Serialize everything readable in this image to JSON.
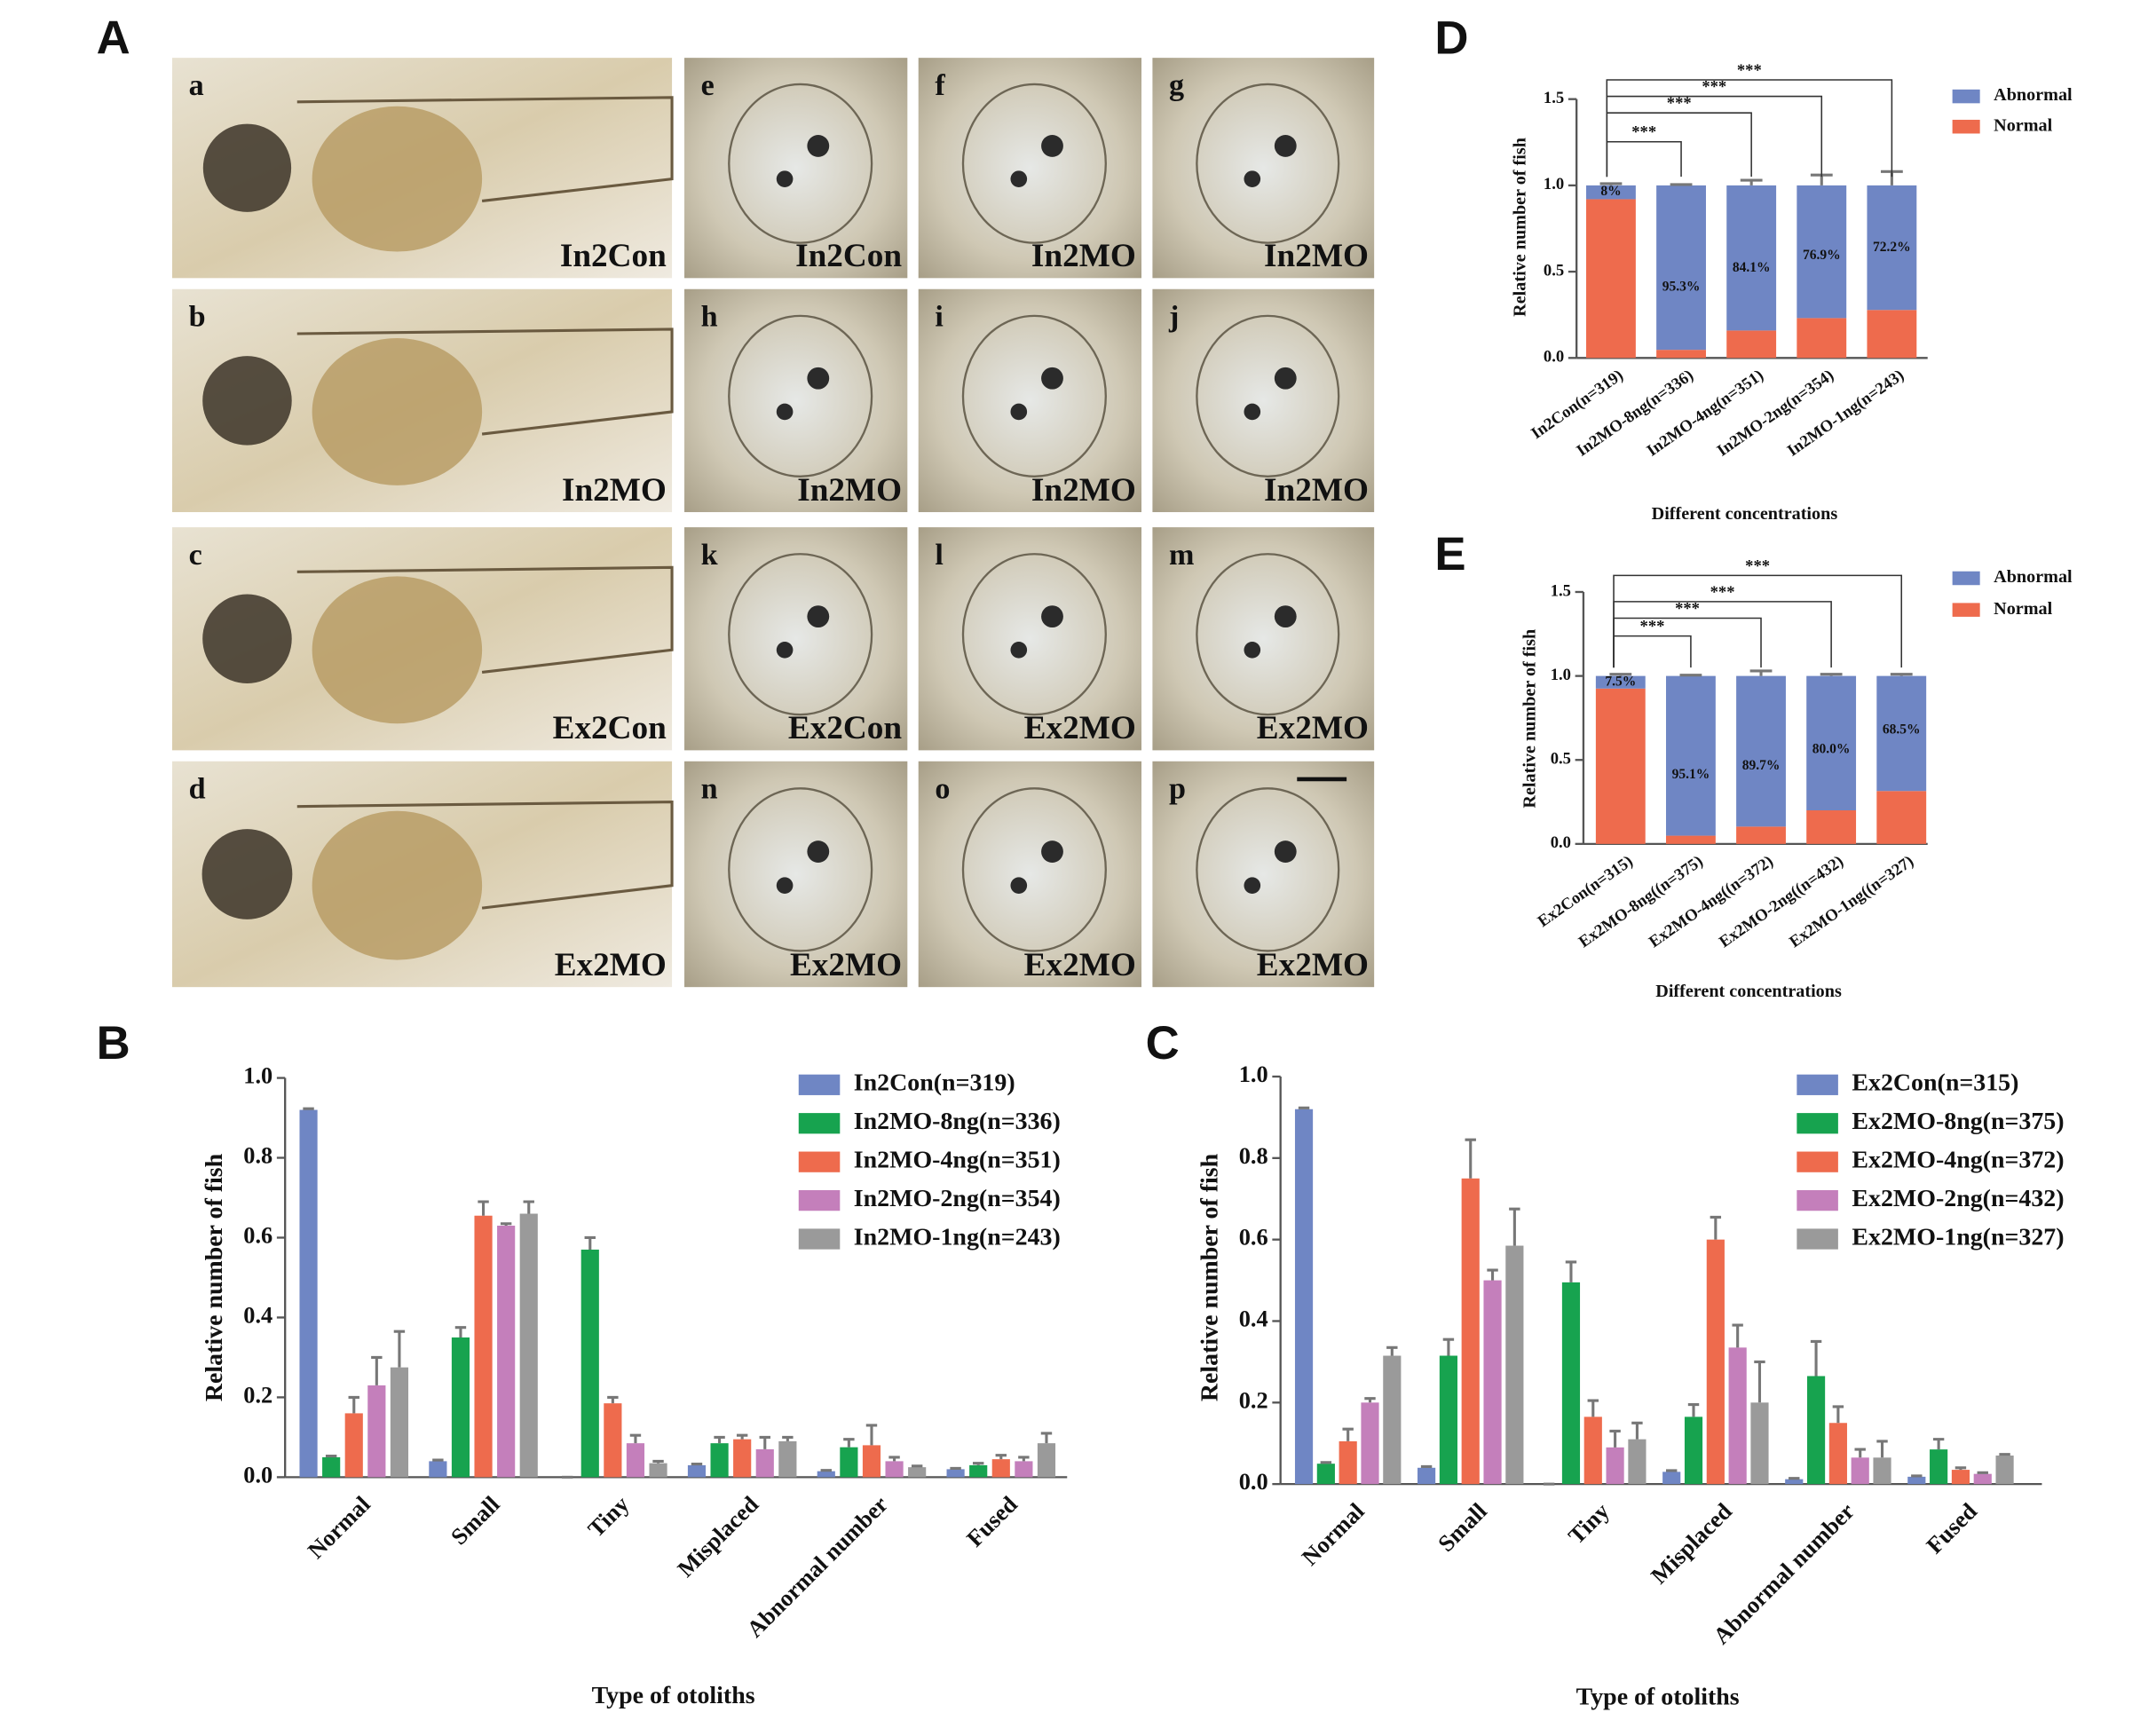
{
  "panel_letters": [
    "A",
    "B",
    "C",
    "D",
    "E"
  ],
  "images": [
    {
      "letter": "a",
      "label": "In2Con"
    },
    {
      "letter": "e",
      "label": "In2Con"
    },
    {
      "letter": "f",
      "label": "In2MO"
    },
    {
      "letter": "g",
      "label": "In2MO"
    },
    {
      "letter": "b",
      "label": "In2MO"
    },
    {
      "letter": "h",
      "label": "In2MO"
    },
    {
      "letter": "i",
      "label": "In2MO"
    },
    {
      "letter": "j",
      "label": "In2MO"
    },
    {
      "letter": "c",
      "label": "Ex2Con"
    },
    {
      "letter": "k",
      "label": "Ex2Con"
    },
    {
      "letter": "l",
      "label": "Ex2MO"
    },
    {
      "letter": "m",
      "label": "Ex2MO"
    },
    {
      "letter": "d",
      "label": "Ex2MO"
    },
    {
      "letter": "n",
      "label": "Ex2MO"
    },
    {
      "letter": "o",
      "label": "Ex2MO"
    },
    {
      "letter": "p",
      "label": "Ex2MO"
    }
  ],
  "chart_data": [
    {
      "type": "bar",
      "y_label": "Relative number of fish",
      "x_label": "Type of otoliths",
      "categories": [
        "Normal",
        "Small",
        "Tiny",
        "Misplaced",
        "Abnormal number",
        "Fused"
      ],
      "ylim": [
        0,
        1.0
      ],
      "yticks": [
        {
          "value": 0,
          "label": "0.0"
        },
        {
          "value": 0.2,
          "label": "0.2"
        },
        {
          "value": 0.4,
          "label": "0.4"
        },
        {
          "value": 0.6,
          "label": "0.6"
        },
        {
          "value": 0.8,
          "label": "0.8"
        },
        {
          "value": 1.0,
          "label": "1.0"
        }
      ],
      "series": [
        {
          "name": "In2Con(n=319)",
          "color": "#6f86c4",
          "values": [
            0.92,
            0.04,
            0,
            0.03,
            0.015,
            0.02
          ],
          "errors": [
            0.003,
            0.003,
            0,
            0.003,
            0.002,
            0.002
          ]
        },
        {
          "name": "In2MO-8ng(n=336)",
          "color": "#17a34f",
          "values": [
            0.05,
            0.35,
            0.57,
            0.085,
            0.075,
            0.03
          ],
          "errors": [
            0.003,
            0.025,
            0.03,
            0.015,
            0.02,
            0.005
          ]
        },
        {
          "name": "In2MO-4ng(n=351)",
          "color": "#ee6b4d",
          "values": [
            0.16,
            0.655,
            0.185,
            0.095,
            0.08,
            0.045
          ],
          "errors": [
            0.04,
            0.035,
            0.015,
            0.01,
            0.05,
            0.01
          ]
        },
        {
          "name": "In2MO-2ng(n=354)",
          "color": "#c47fbb",
          "values": [
            0.23,
            0.63,
            0.085,
            0.07,
            0.04,
            0.04
          ],
          "errors": [
            0.07,
            0.005,
            0.02,
            0.03,
            0.01,
            0.01
          ]
        },
        {
          "name": "In2MO-1ng(n=243)",
          "color": "#9a9a9a",
          "values": [
            0.275,
            0.66,
            0.035,
            0.09,
            0.025,
            0.085
          ],
          "errors": [
            0.09,
            0.03,
            0.005,
            0.01,
            0.003,
            0.025
          ]
        }
      ]
    },
    {
      "type": "bar",
      "y_label": "Relative number of fish",
      "x_label": "Type of otoliths",
      "categories": [
        "Normal",
        "Small",
        "Tiny",
        "Misplaced",
        "Abnormal number",
        "Fused"
      ],
      "ylim": [
        0,
        1.0
      ],
      "yticks": [
        {
          "value": 0,
          "label": "0.0"
        },
        {
          "value": 0.2,
          "label": "0.2"
        },
        {
          "value": 0.4,
          "label": "0.4"
        },
        {
          "value": 0.6,
          "label": "0.6"
        },
        {
          "value": 0.8,
          "label": "0.8"
        },
        {
          "value": 1.0,
          "label": "1.0"
        }
      ],
      "series": [
        {
          "name": "Ex2Con(n=315)",
          "color": "#6f86c4",
          "values": [
            0.92,
            0.04,
            0,
            0.03,
            0.012,
            0.018
          ],
          "errors": [
            0.003,
            0.003,
            0,
            0.003,
            0.002,
            0.002
          ]
        },
        {
          "name": "Ex2MO-8ng(n=375)",
          "color": "#17a34f",
          "values": [
            0.05,
            0.315,
            0.495,
            0.165,
            0.265,
            0.085
          ],
          "errors": [
            0.003,
            0.04,
            0.05,
            0.03,
            0.085,
            0.025
          ]
        },
        {
          "name": "Ex2MO-4ng(n=372)",
          "color": "#ee6b4d",
          "values": [
            0.105,
            0.75,
            0.165,
            0.6,
            0.15,
            0.035
          ],
          "errors": [
            0.03,
            0.095,
            0.04,
            0.055,
            0.04,
            0.005
          ]
        },
        {
          "name": "Ex2MO-2ng(n=432)",
          "color": "#c47fbb",
          "values": [
            0.2,
            0.5,
            0.09,
            0.335,
            0.065,
            0.025
          ],
          "errors": [
            0.01,
            0.025,
            0.04,
            0.055,
            0.02,
            0.003
          ]
        },
        {
          "name": "Ex2MO-1ng(n=327)",
          "color": "#9a9a9a",
          "values": [
            0.315,
            0.585,
            0.11,
            0.2,
            0.065,
            0.07
          ],
          "errors": [
            0.02,
            0.09,
            0.04,
            0.1,
            0.04,
            0.003
          ]
        }
      ]
    },
    {
      "type": "stacked_bar",
      "y_label": "Relative number of fish",
      "x_label": "Different concentrations",
      "categories": [
        "In2Con(n=319)",
        "In2MO-8ng(n=336)",
        "In2MO-4ng(n=351)",
        "In2MO-2ng(n=354)",
        "In2MO-1ng(n=243)"
      ],
      "ylim": [
        0,
        1.5
      ],
      "yticks": [
        {
          "value": 0,
          "label": "0.0"
        },
        {
          "value": 0.5,
          "label": "0.5"
        },
        {
          "value": 1.0,
          "label": "1.0"
        },
        1.5
      ],
      "series": [
        {
          "name": "Abnormal",
          "color": "#6f86c4",
          "values": [
            0.08,
            0.953,
            0.841,
            0.769,
            0.722
          ],
          "value_labels": [
            "8%",
            "95.3%",
            "84.1%",
            "76.9%",
            "72.2%"
          ],
          "errors": [
            0.01,
            0.005,
            0.03,
            0.06,
            0.08
          ]
        },
        {
          "name": "Normal",
          "color": "#ee6b4d",
          "values": [
            0.92,
            0.047,
            0.159,
            0.231,
            0.278
          ]
        }
      ],
      "significance": [
        {
          "from": 0,
          "to": 1,
          "label": "***"
        },
        {
          "from": 0,
          "to": 2,
          "label": "***"
        },
        {
          "from": 0,
          "to": 3,
          "label": "***"
        },
        {
          "from": 0,
          "to": 4,
          "label": "***"
        }
      ]
    },
    {
      "type": "stacked_bar",
      "y_label": "Relative number of fish",
      "x_label": "Different concentrations",
      "categories": [
        "Ex2Con(n=315)",
        "Ex2MO-8ng((n=375)",
        "Ex2MO-4ng((n=372)",
        "Ex2MO-2ng((n=432)",
        "Ex2MO-1ng((n=327)"
      ],
      "ylim": [
        0,
        1.5
      ],
      "yticks": [
        {
          "value": 0,
          "label": "0.0"
        },
        {
          "value": 0.5,
          "label": "0.5"
        },
        {
          "value": 1.0,
          "label": "1.0"
        },
        1.5
      ],
      "series": [
        {
          "name": "Abnormal",
          "color": "#6f86c4",
          "values": [
            0.075,
            0.951,
            0.897,
            0.8,
            0.685
          ],
          "value_labels": [
            "7.5%",
            "95.1%",
            "89.7%",
            "80.0%",
            "68.5%"
          ],
          "errors": [
            0.01,
            0.005,
            0.03,
            0.01,
            0.01
          ]
        },
        {
          "name": "Normal",
          "color": "#ee6b4d",
          "values": [
            0.925,
            0.049,
            0.103,
            0.2,
            0.315
          ]
        }
      ],
      "significance": [
        {
          "from": 0,
          "to": 1,
          "label": "***"
        },
        {
          "from": 0,
          "to": 2,
          "label": "***"
        },
        {
          "from": 0,
          "to": 3,
          "label": "***"
        },
        {
          "from": 0,
          "to": 4,
          "label": "***"
        }
      ]
    }
  ]
}
